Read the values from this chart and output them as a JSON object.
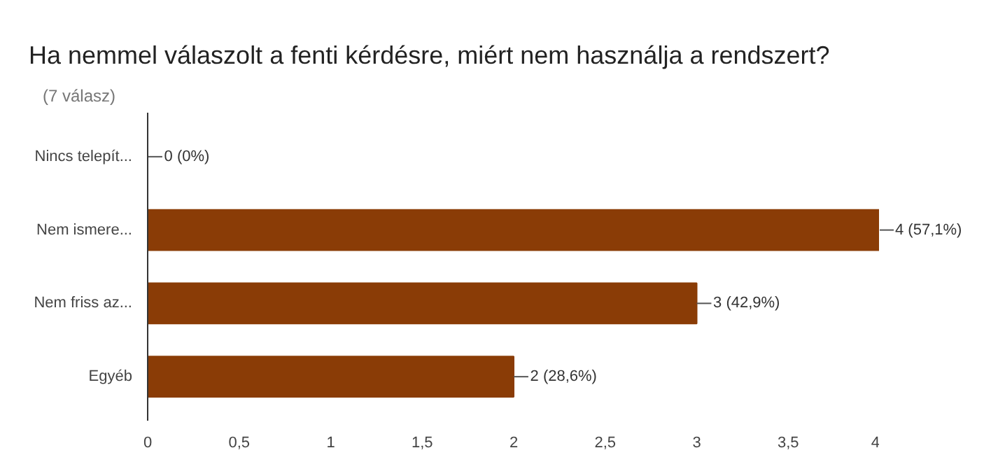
{
  "chart_data": {
    "type": "bar",
    "orientation": "horizontal",
    "title": "Ha nemmel válaszolt a fenti kérdésre, miért nem használja a rendszert?",
    "subtitle": "(7 válasz)",
    "categories": [
      "Nincs telepít...",
      "Nem ismere...",
      "Nem friss az...",
      "Egyéb"
    ],
    "values": [
      0,
      4,
      3,
      2
    ],
    "value_labels": [
      "0 (0%)",
      "4 (57,1%)",
      "3 (42,9%)",
      "2 (28,6%)"
    ],
    "color": "#8a3c06",
    "xlim": [
      0,
      4
    ],
    "xticks": [
      0,
      {
        "value": 0.5,
        "label": "0,5"
      },
      1,
      {
        "value": 1.5,
        "label": "1,5"
      },
      2,
      {
        "value": 2.5,
        "label": "2,5"
      },
      3,
      {
        "value": 3.5,
        "label": "3,5"
      },
      4
    ],
    "grid": false
  }
}
